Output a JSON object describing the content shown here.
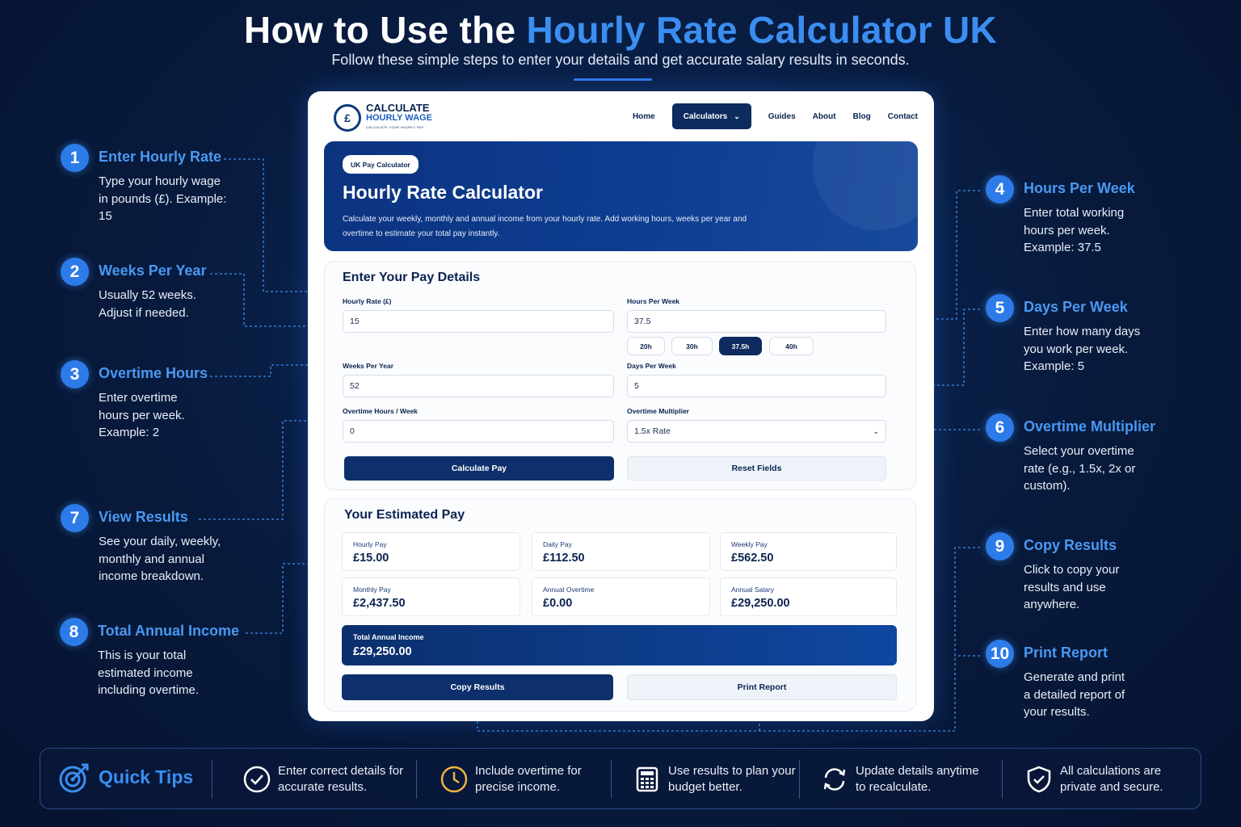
{
  "hero": {
    "title_prefix": "How to Use the ",
    "title_accent": "Hourly Rate Calculator UK",
    "subtitle": "Follow these simple steps to enter your details and get accurate salary results in seconds."
  },
  "steps": [
    {
      "num": "1",
      "title": "Enter Hourly Rate",
      "desc": "Type your hourly wage in pounds (£). Example:  15"
    },
    {
      "num": "2",
      "title": "Weeks Per Year",
      "desc": "Usually 52 weeks. Adjust if needed."
    },
    {
      "num": "3",
      "title": "Overtime Hours",
      "desc": "Enter overtime hours per week. Example:  2"
    },
    {
      "num": "4",
      "title": "Hours Per Week",
      "desc": "Enter total working hours per week. Example:  37.5"
    },
    {
      "num": "5",
      "title": "Days Per Week",
      "desc": "Enter how many days you work per week. Example:  5"
    },
    {
      "num": "6",
      "title": "Overtime Multiplier",
      "desc": "Select your overtime rate (e.g., 1.5x, 2x or custom)."
    },
    {
      "num": "7",
      "title": "View Results",
      "desc": "See your daily, weekly, monthly and annual income breakdown."
    },
    {
      "num": "8",
      "title": "Total Annual Income",
      "desc": "This is your total estimated income including overtime."
    },
    {
      "num": "9",
      "title": "Copy Results",
      "desc": "Click to copy your results and use anywhere."
    },
    {
      "num": "10",
      "title": "Print Report",
      "desc": "Generate and print a detailed report of your results."
    }
  ],
  "app": {
    "logo": {
      "line1": "CALCULATE",
      "line2": "HOURLY WAGE",
      "tagline": "CALCULATE YOUR HOURLY PAY"
    },
    "nav": [
      "Home",
      "Calculators",
      "Guides",
      "About",
      "Blog",
      "Contact"
    ],
    "banner": {
      "badge": "UK Pay Calculator",
      "title": "Hourly Rate Calculator",
      "desc": "Calculate your weekly, monthly and annual income from your hourly rate. Add working hours, weeks per year and overtime to estimate your total pay instantly."
    },
    "form": {
      "title": "Enter Your Pay Details",
      "hourly_label": "Hourly Rate (£)",
      "hourly_value": "15",
      "hours_label": "Hours Per Week",
      "hours_value": "37.5",
      "presets": [
        "20h",
        "30h",
        "37.5h",
        "40h"
      ],
      "weeks_label": "Weeks Per Year",
      "weeks_value": "52",
      "days_label": "Days Per Week",
      "days_value": "5",
      "overtime_label": "Overtime Hours / Week",
      "overtime_value": "0",
      "multiplier_label": "Overtime Multiplier",
      "multiplier_value": "1.5x Rate",
      "calc_button": "Calculate Pay",
      "reset_button": "Reset Fields"
    },
    "results": {
      "title": "Your Estimated Pay",
      "items": [
        {
          "label": "Hourly Pay",
          "value": "£15.00"
        },
        {
          "label": "Daily Pay",
          "value": "£112.50"
        },
        {
          "label": "Weekly Pay",
          "value": "£562.50"
        },
        {
          "label": "Monthly Pay",
          "value": "£2,437.50"
        },
        {
          "label": "Annual Overtime",
          "value": "£0.00"
        },
        {
          "label": "Annual Salary",
          "value": "£29,250.00"
        }
      ],
      "total_label": "Total Annual Income",
      "total_value": "£29,250.00",
      "copy_button": "Copy Results",
      "print_button": "Print Report"
    }
  },
  "tips": {
    "title": "Quick Tips",
    "items": [
      {
        "icon": "check-circle-icon",
        "text": "Enter correct details for accurate results."
      },
      {
        "icon": "clock-icon",
        "text": "Include overtime for precise income."
      },
      {
        "icon": "calculator-icon",
        "text": "Use results to plan your budget better."
      },
      {
        "icon": "refresh-icon",
        "text": "Update details anytime to recalculate."
      },
      {
        "icon": "shield-check-icon",
        "text": "All calculations are private and secure."
      }
    ]
  },
  "colors": {
    "accent": "#3b8ef0",
    "navy": "#0d2b5e",
    "background": "#081a3c"
  }
}
